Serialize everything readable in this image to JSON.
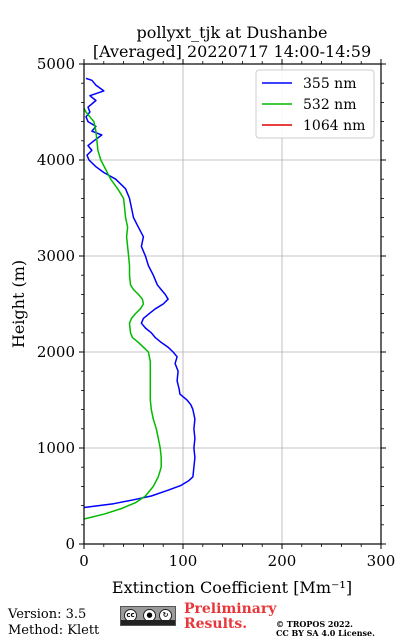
{
  "chart_data": {
    "type": "line",
    "title": "pollyxt_tjk at Dushanbe",
    "subtitle": "[Averaged] 20220717 14:00-14:59",
    "xlabel": "Extinction Coefficient [Mm⁻¹]",
    "ylabel": "Height (m)",
    "xlim": [
      0,
      300
    ],
    "ylim": [
      0,
      5000
    ],
    "xticks": [
      "0",
      "100",
      "200",
      "300"
    ],
    "yticks": [
      "0",
      "1000",
      "2000",
      "3000",
      "4000",
      "5000"
    ],
    "grid": true,
    "legend_position": "top-right",
    "series": [
      {
        "name": "355 nm",
        "color": "#0000ff",
        "points": [
          [
            0,
            380
          ],
          [
            30,
            420
          ],
          [
            50,
            460
          ],
          [
            68,
            500
          ],
          [
            85,
            560
          ],
          [
            98,
            610
          ],
          [
            106,
            660
          ],
          [
            110,
            700
          ],
          [
            111,
            800
          ],
          [
            112,
            900
          ],
          [
            111,
            1000
          ],
          [
            112,
            1100
          ],
          [
            111,
            1200
          ],
          [
            112,
            1300
          ],
          [
            110,
            1400
          ],
          [
            108,
            1450
          ],
          [
            104,
            1500
          ],
          [
            97,
            1560
          ],
          [
            96,
            1620
          ],
          [
            94,
            1700
          ],
          [
            95,
            1800
          ],
          [
            92,
            1880
          ],
          [
            94,
            1950
          ],
          [
            90,
            2000
          ],
          [
            85,
            2050
          ],
          [
            78,
            2100
          ],
          [
            72,
            2150
          ],
          [
            68,
            2200
          ],
          [
            62,
            2250
          ],
          [
            58,
            2300
          ],
          [
            60,
            2350
          ],
          [
            66,
            2400
          ],
          [
            72,
            2450
          ],
          [
            80,
            2500
          ],
          [
            85,
            2550
          ],
          [
            82,
            2600
          ],
          [
            78,
            2650
          ],
          [
            74,
            2700
          ],
          [
            70,
            2800
          ],
          [
            65,
            2900
          ],
          [
            62,
            3000
          ],
          [
            58,
            3100
          ],
          [
            60,
            3200
          ],
          [
            55,
            3300
          ],
          [
            50,
            3400
          ],
          [
            48,
            3500
          ],
          [
            46,
            3600
          ],
          [
            42,
            3700
          ],
          [
            32,
            3800
          ],
          [
            20,
            3870
          ],
          [
            12,
            3930
          ],
          [
            5,
            4000
          ],
          [
            3,
            4050
          ],
          [
            8,
            4100
          ],
          [
            4,
            4150
          ],
          [
            10,
            4200
          ],
          [
            18,
            4260
          ],
          [
            8,
            4300
          ],
          [
            12,
            4350
          ],
          [
            4,
            4400
          ],
          [
            2,
            4450
          ],
          [
            6,
            4500
          ],
          [
            4,
            4550
          ],
          [
            12,
            4620
          ],
          [
            6,
            4670
          ],
          [
            20,
            4720
          ],
          [
            12,
            4780
          ],
          [
            8,
            4830
          ],
          [
            2,
            4850
          ]
        ]
      },
      {
        "name": "532 nm",
        "color": "#00bb00",
        "points": [
          [
            0,
            260
          ],
          [
            20,
            310
          ],
          [
            38,
            370
          ],
          [
            52,
            430
          ],
          [
            62,
            500
          ],
          [
            70,
            600
          ],
          [
            75,
            700
          ],
          [
            78,
            800
          ],
          [
            78,
            900
          ],
          [
            77,
            1000
          ],
          [
            75,
            1100
          ],
          [
            73,
            1200
          ],
          [
            70,
            1300
          ],
          [
            68,
            1400
          ],
          [
            67,
            1500
          ],
          [
            67,
            1600
          ],
          [
            67,
            1700
          ],
          [
            67,
            1800
          ],
          [
            67,
            1900
          ],
          [
            65,
            2000
          ],
          [
            60,
            2050
          ],
          [
            55,
            2100
          ],
          [
            49,
            2150
          ],
          [
            47,
            2200
          ],
          [
            46,
            2300
          ],
          [
            48,
            2350
          ],
          [
            52,
            2400
          ],
          [
            57,
            2450
          ],
          [
            60,
            2500
          ],
          [
            59,
            2550
          ],
          [
            55,
            2600
          ],
          [
            50,
            2650
          ],
          [
            47,
            2700
          ],
          [
            46,
            2800
          ],
          [
            46,
            2900
          ],
          [
            45,
            3000
          ],
          [
            44,
            3100
          ],
          [
            43,
            3200
          ],
          [
            44,
            3300
          ],
          [
            42,
            3400
          ],
          [
            41,
            3500
          ],
          [
            40,
            3600
          ],
          [
            34,
            3700
          ],
          [
            27,
            3800
          ],
          [
            22,
            3900
          ],
          [
            17,
            4000
          ],
          [
            14,
            4100
          ],
          [
            13,
            4200
          ],
          [
            12,
            4300
          ],
          [
            10,
            4400
          ],
          [
            6,
            4450
          ],
          [
            2,
            4500
          ],
          [
            0,
            4540
          ]
        ]
      },
      {
        "name": "1064 nm",
        "color": "#dd0000",
        "points": []
      }
    ]
  },
  "footer": {
    "version": "Version: 3.5",
    "method": "Method: Klett",
    "cc_icons": [
      "cc-icon",
      "by-icon",
      "sa-icon"
    ],
    "preliminary_line1": "Preliminary",
    "preliminary_line2": "Results.",
    "copyright_line1": "© TROPOS 2022.",
    "copyright_line2": "CC BY SA 4.0 License."
  }
}
